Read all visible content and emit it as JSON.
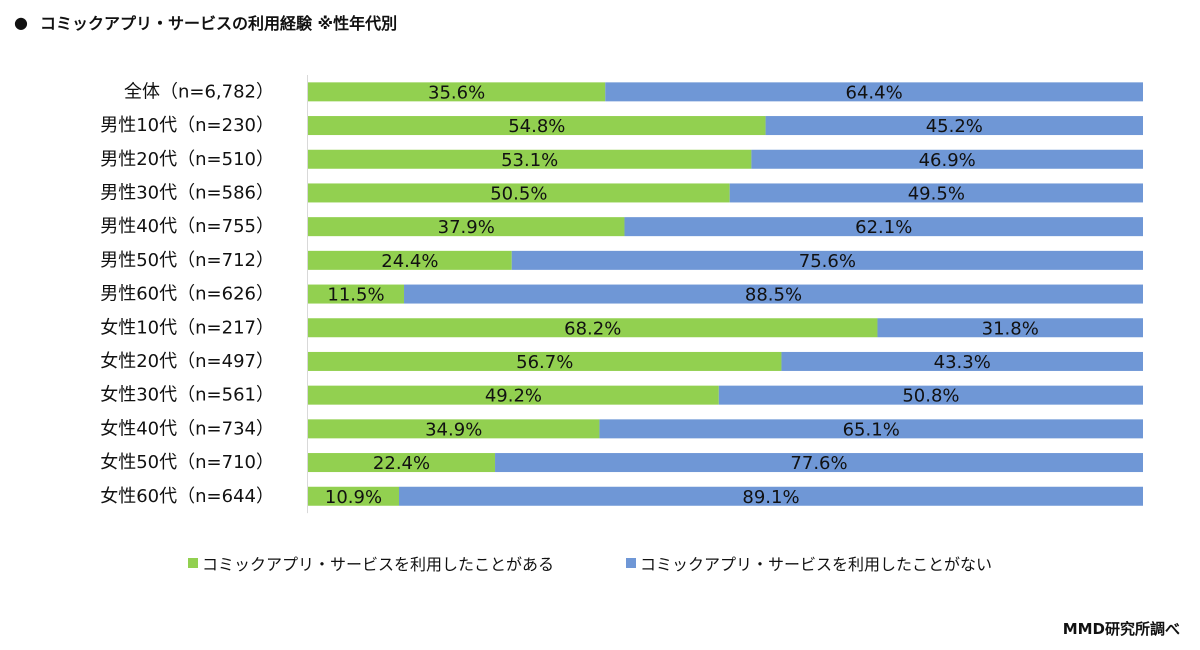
{
  "header": {
    "bullet": "●",
    "title": "コミックアプリ・サービスの利用経験 ※性年代別"
  },
  "credit": "MMD研究所調べ",
  "colors": {
    "used": "#92d050",
    "not_used": "#6f97d6",
    "axis": "#d9d9d9"
  },
  "chart_data": {
    "type": "bar",
    "orientation": "horizontal",
    "stacked": "percent",
    "title": "コミックアプリ・サービスの利用経験 ※性年代別",
    "categories": [
      "全体（n=6,782）",
      "男性10代（n=230）",
      "男性20代（n=510）",
      "男性30代（n=586）",
      "男性40代（n=755）",
      "男性50代（n=712）",
      "男性60代（n=626）",
      "女性10代（n=217）",
      "女性20代（n=497）",
      "女性30代（n=561）",
      "女性40代（n=734）",
      "女性50代（n=710）",
      "女性60代（n=644）"
    ],
    "series": [
      {
        "name": "コミックアプリ・サービスを利用したことがある",
        "values": [
          35.6,
          54.8,
          53.1,
          50.5,
          37.9,
          24.4,
          11.5,
          68.2,
          56.7,
          49.2,
          34.9,
          22.4,
          10.9
        ]
      },
      {
        "name": "コミックアプリ・サービスを利用したことがない",
        "values": [
          64.4,
          45.2,
          46.9,
          49.5,
          62.1,
          75.6,
          88.5,
          31.8,
          43.3,
          50.8,
          65.1,
          77.6,
          89.1
        ]
      }
    ],
    "value_suffix": "%",
    "xlim": [
      0,
      100
    ],
    "legend_position": "bottom",
    "grid": false
  }
}
